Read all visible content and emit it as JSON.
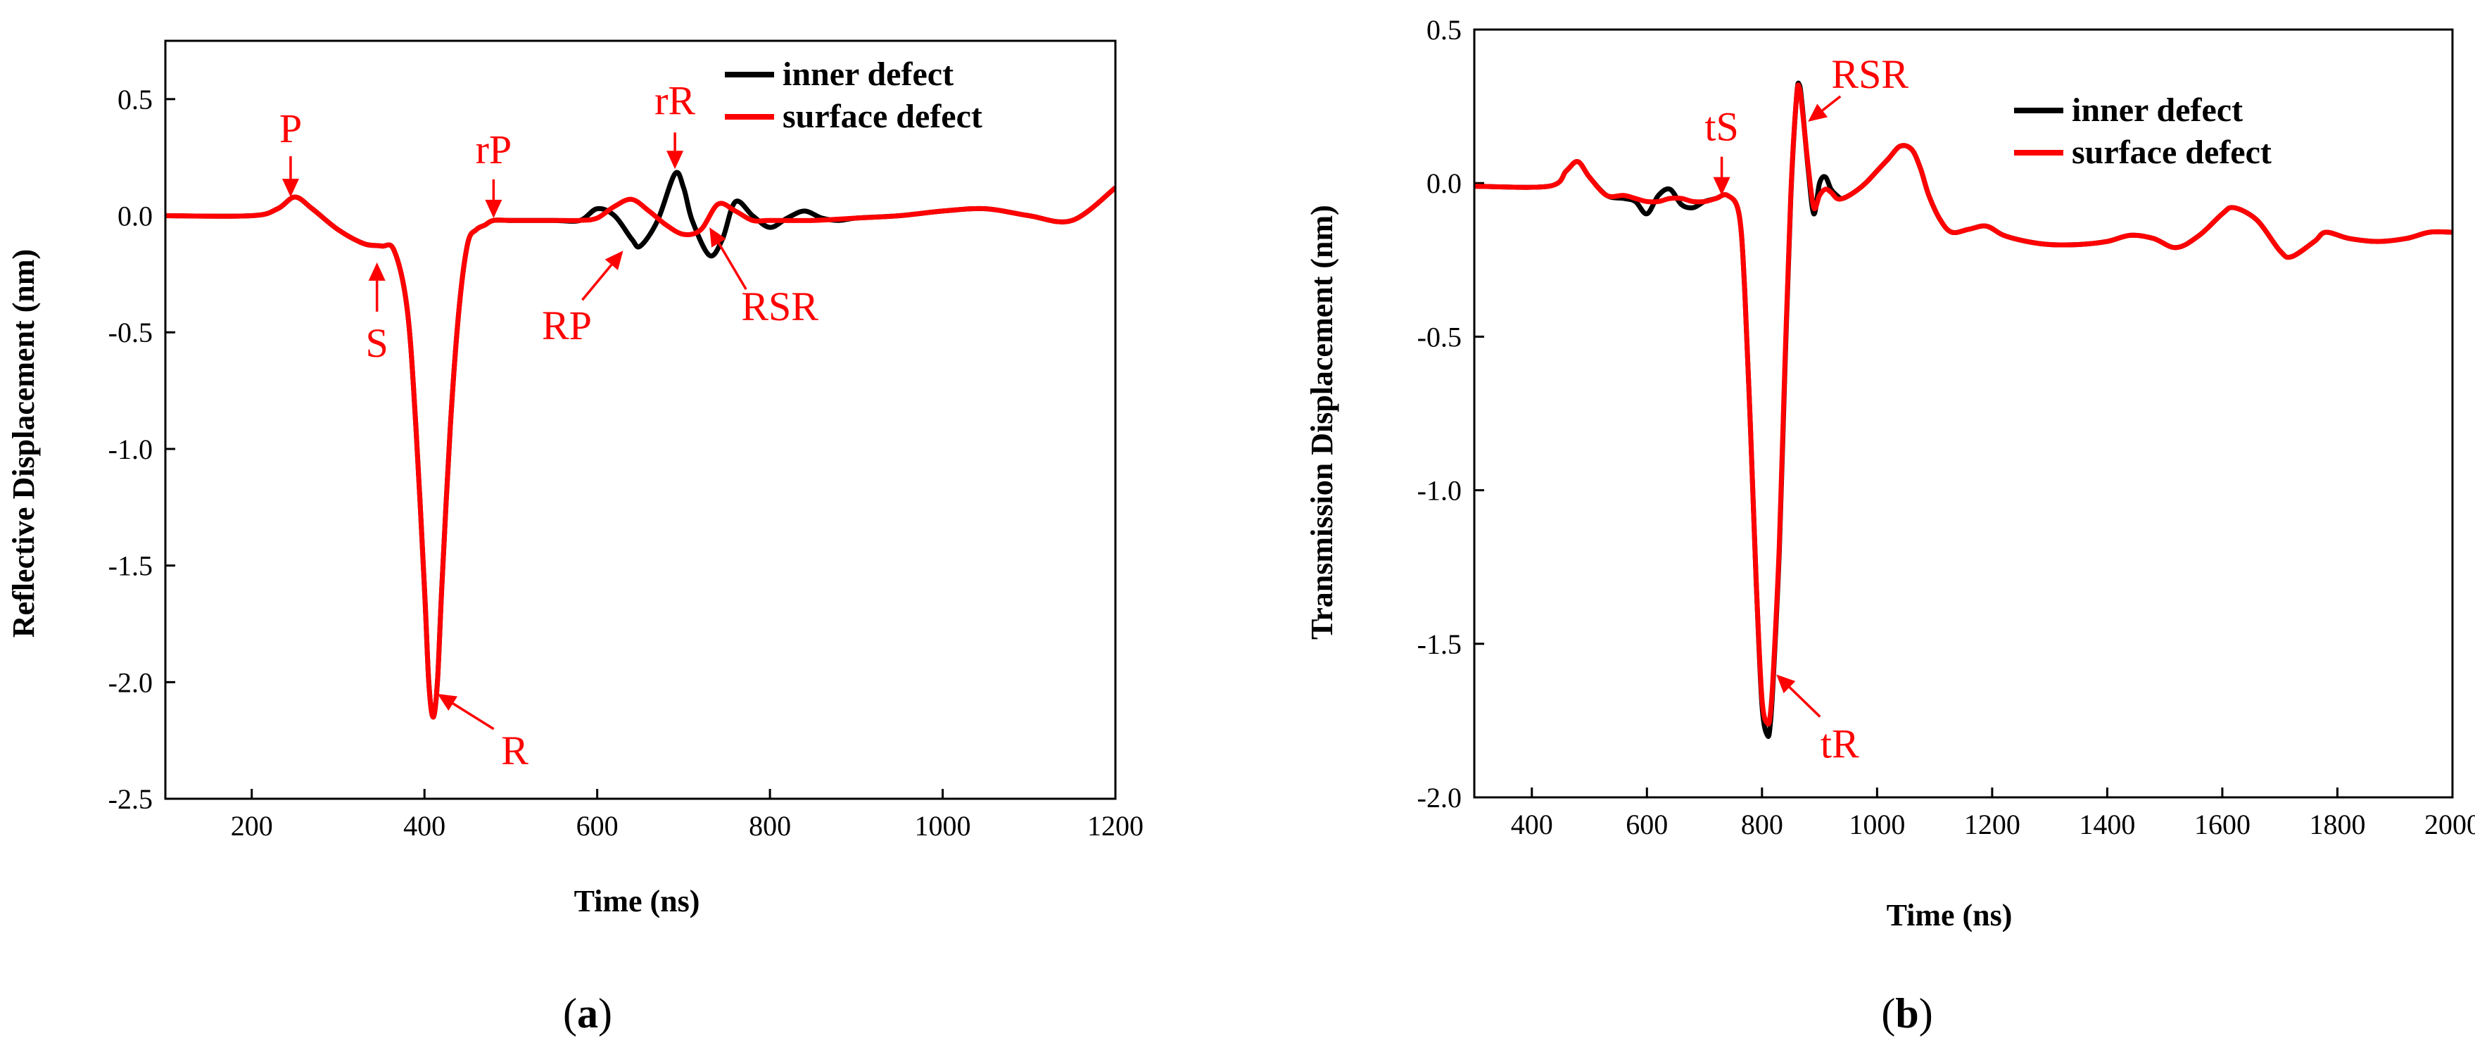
{
  "colors": {
    "inner": "#000000",
    "surface": "#ff0000",
    "annotation": "#ff0000",
    "axis": "#000000"
  },
  "chart_data": [
    {
      "type": "line",
      "panel_label": "a",
      "xlabel": "Time (ns)",
      "ylabel": "Reflective Displacement (nm)",
      "xlim": [
        100,
        1200
      ],
      "ylim": [
        -2.5,
        0.75
      ],
      "xticks": [
        200,
        400,
        600,
        800,
        1000,
        1200
      ],
      "yticks": [
        -2.5,
        -2.0,
        -1.5,
        -1.0,
        -0.5,
        0.0,
        0.5
      ],
      "legend": {
        "position": "top-right",
        "entries": [
          "inner defect",
          "surface defect"
        ]
      },
      "series": [
        {
          "name": "inner defect",
          "color": "#000000",
          "x": [
            100,
            200,
            230,
            250,
            270,
            300,
            330,
            350,
            365,
            380,
            390,
            400,
            405,
            410,
            415,
            420,
            430,
            440,
            450,
            460,
            470,
            480,
            500,
            520,
            550,
            580,
            600,
            620,
            640,
            650,
            670,
            690,
            700,
            710,
            730,
            745,
            760,
            780,
            800,
            820,
            840,
            860,
            880,
            900,
            950,
            1000,
            1050,
            1100,
            1150,
            1200
          ],
          "y": [
            0,
            0,
            0.03,
            0.08,
            0.03,
            -0.06,
            -0.12,
            -0.13,
            -0.15,
            -0.4,
            -0.9,
            -1.6,
            -2.0,
            -2.15,
            -2.0,
            -1.6,
            -0.9,
            -0.4,
            -0.12,
            -0.06,
            -0.04,
            -0.02,
            -0.02,
            -0.02,
            -0.02,
            -0.02,
            0.03,
            0.0,
            -0.1,
            -0.13,
            -0.02,
            0.18,
            0.12,
            -0.02,
            -0.17,
            -0.1,
            0.06,
            0.0,
            -0.05,
            -0.01,
            0.02,
            -0.01,
            -0.02,
            -0.01,
            0.0,
            0.02,
            0.03,
            0.0,
            -0.02,
            0.12
          ]
        },
        {
          "name": "surface defect",
          "color": "#ff0000",
          "x": [
            100,
            200,
            230,
            250,
            270,
            300,
            330,
            350,
            365,
            380,
            390,
            400,
            405,
            410,
            415,
            420,
            430,
            440,
            450,
            460,
            470,
            480,
            500,
            520,
            550,
            580,
            600,
            620,
            640,
            660,
            680,
            700,
            720,
            740,
            760,
            780,
            800,
            850,
            900,
            950,
            1000,
            1050,
            1100,
            1150,
            1200
          ],
          "y": [
            0,
            0,
            0.03,
            0.08,
            0.03,
            -0.06,
            -0.12,
            -0.13,
            -0.15,
            -0.4,
            -0.9,
            -1.6,
            -2.0,
            -2.15,
            -2.0,
            -1.6,
            -0.9,
            -0.4,
            -0.12,
            -0.06,
            -0.04,
            -0.02,
            -0.02,
            -0.02,
            -0.02,
            -0.02,
            -0.01,
            0.04,
            0.07,
            0.02,
            -0.04,
            -0.08,
            -0.06,
            0.05,
            0.02,
            -0.02,
            -0.02,
            -0.02,
            -0.01,
            0.0,
            0.02,
            0.03,
            0.0,
            -0.02,
            0.12
          ]
        }
      ],
      "annotations": [
        {
          "text": "P",
          "x": 245,
          "y": 0.08
        },
        {
          "text": "S",
          "x": 345,
          "y": -0.2
        },
        {
          "text": "rP",
          "x": 480,
          "y": -0.01
        },
        {
          "text": "rR",
          "x": 690,
          "y": 0.2
        },
        {
          "text": "RP",
          "x": 630,
          "y": -0.15
        },
        {
          "text": "RSR",
          "x": 730,
          "y": -0.05
        },
        {
          "text": "R",
          "x": 415,
          "y": -2.05
        }
      ]
    },
    {
      "type": "line",
      "panel_label": "b",
      "xlabel": "Time (ns)",
      "ylabel": "Transmission Displacement (nm)",
      "xlim": [
        300,
        2000
      ],
      "ylim": [
        -2.0,
        0.5
      ],
      "xticks": [
        400,
        600,
        800,
        1000,
        1200,
        1400,
        1600,
        1800,
        2000
      ],
      "yticks": [
        -2.0,
        -1.5,
        -1.0,
        -0.5,
        0.0,
        0.5
      ],
      "legend": {
        "position": "top-right",
        "entries": [
          "inner defect",
          "surface defect"
        ]
      },
      "series": [
        {
          "name": "inner defect",
          "color": "#000000",
          "x": [
            300,
            430,
            460,
            480,
            500,
            530,
            560,
            580,
            600,
            620,
            640,
            660,
            680,
            700,
            720,
            740,
            760,
            770,
            780,
            790,
            800,
            810,
            815,
            820,
            830,
            840,
            850,
            860,
            865,
            870,
            880,
            890,
            900,
            910,
            920,
            930,
            940,
            960,
            980,
            1000,
            1020,
            1040,
            1060,
            1075,
            1090,
            1110,
            1130,
            1160,
            1190,
            1220,
            1260,
            1300,
            1350,
            1400,
            1440,
            1480,
            1520,
            1560,
            1600,
            1620,
            1660,
            1700,
            1720,
            1760,
            1780,
            1820,
            1870,
            1920,
            1960,
            2000
          ],
          "y": [
            -0.01,
            -0.01,
            0.04,
            0.07,
            0.02,
            -0.04,
            -0.05,
            -0.06,
            -0.1,
            -0.04,
            -0.02,
            -0.07,
            -0.08,
            -0.06,
            -0.05,
            -0.04,
            -0.1,
            -0.35,
            -0.8,
            -1.3,
            -1.7,
            -1.8,
            -1.75,
            -1.6,
            -1.2,
            -0.6,
            -0.05,
            0.28,
            0.32,
            0.25,
            0.05,
            -0.1,
            0.0,
            0.02,
            -0.02,
            -0.04,
            -0.05,
            -0.03,
            0.0,
            0.04,
            0.08,
            0.12,
            0.11,
            0.05,
            -0.04,
            -0.12,
            -0.16,
            -0.15,
            -0.14,
            -0.17,
            -0.19,
            -0.2,
            -0.2,
            -0.19,
            -0.17,
            -0.18,
            -0.21,
            -0.17,
            -0.1,
            -0.08,
            -0.12,
            -0.22,
            -0.24,
            -0.19,
            -0.16,
            -0.18,
            -0.19,
            -0.18,
            -0.16,
            -0.16
          ]
        },
        {
          "name": "surface defect",
          "color": "#ff0000",
          "x": [
            300,
            430,
            460,
            480,
            500,
            530,
            560,
            580,
            600,
            620,
            640,
            660,
            680,
            700,
            720,
            740,
            760,
            770,
            780,
            790,
            800,
            810,
            815,
            820,
            830,
            840,
            850,
            860,
            865,
            870,
            880,
            890,
            900,
            910,
            920,
            930,
            940,
            960,
            980,
            1000,
            1020,
            1040,
            1060,
            1075,
            1090,
            1110,
            1130,
            1160,
            1190,
            1220,
            1260,
            1300,
            1350,
            1400,
            1440,
            1480,
            1520,
            1560,
            1600,
            1620,
            1660,
            1700,
            1720,
            1760,
            1780,
            1820,
            1870,
            1920,
            1960,
            2000
          ],
          "y": [
            -0.01,
            -0.01,
            0.04,
            0.07,
            0.02,
            -0.04,
            -0.04,
            -0.05,
            -0.06,
            -0.06,
            -0.05,
            -0.05,
            -0.06,
            -0.06,
            -0.05,
            -0.04,
            -0.1,
            -0.35,
            -0.8,
            -1.3,
            -1.68,
            -1.76,
            -1.72,
            -1.58,
            -1.18,
            -0.58,
            -0.04,
            0.28,
            0.31,
            0.24,
            0.06,
            -0.08,
            -0.04,
            -0.02,
            -0.03,
            -0.05,
            -0.05,
            -0.03,
            0.0,
            0.04,
            0.08,
            0.12,
            0.11,
            0.05,
            -0.04,
            -0.12,
            -0.16,
            -0.15,
            -0.14,
            -0.17,
            -0.19,
            -0.2,
            -0.2,
            -0.19,
            -0.17,
            -0.18,
            -0.21,
            -0.17,
            -0.1,
            -0.08,
            -0.12,
            -0.22,
            -0.24,
            -0.19,
            -0.16,
            -0.18,
            -0.19,
            -0.18,
            -0.16,
            -0.16
          ]
        }
      ],
      "annotations": [
        {
          "text": "tS",
          "x": 730,
          "y": -0.04
        },
        {
          "text": "RSR",
          "x": 880,
          "y": 0.2
        },
        {
          "text": "tR",
          "x": 825,
          "y": -1.6
        }
      ]
    }
  ]
}
